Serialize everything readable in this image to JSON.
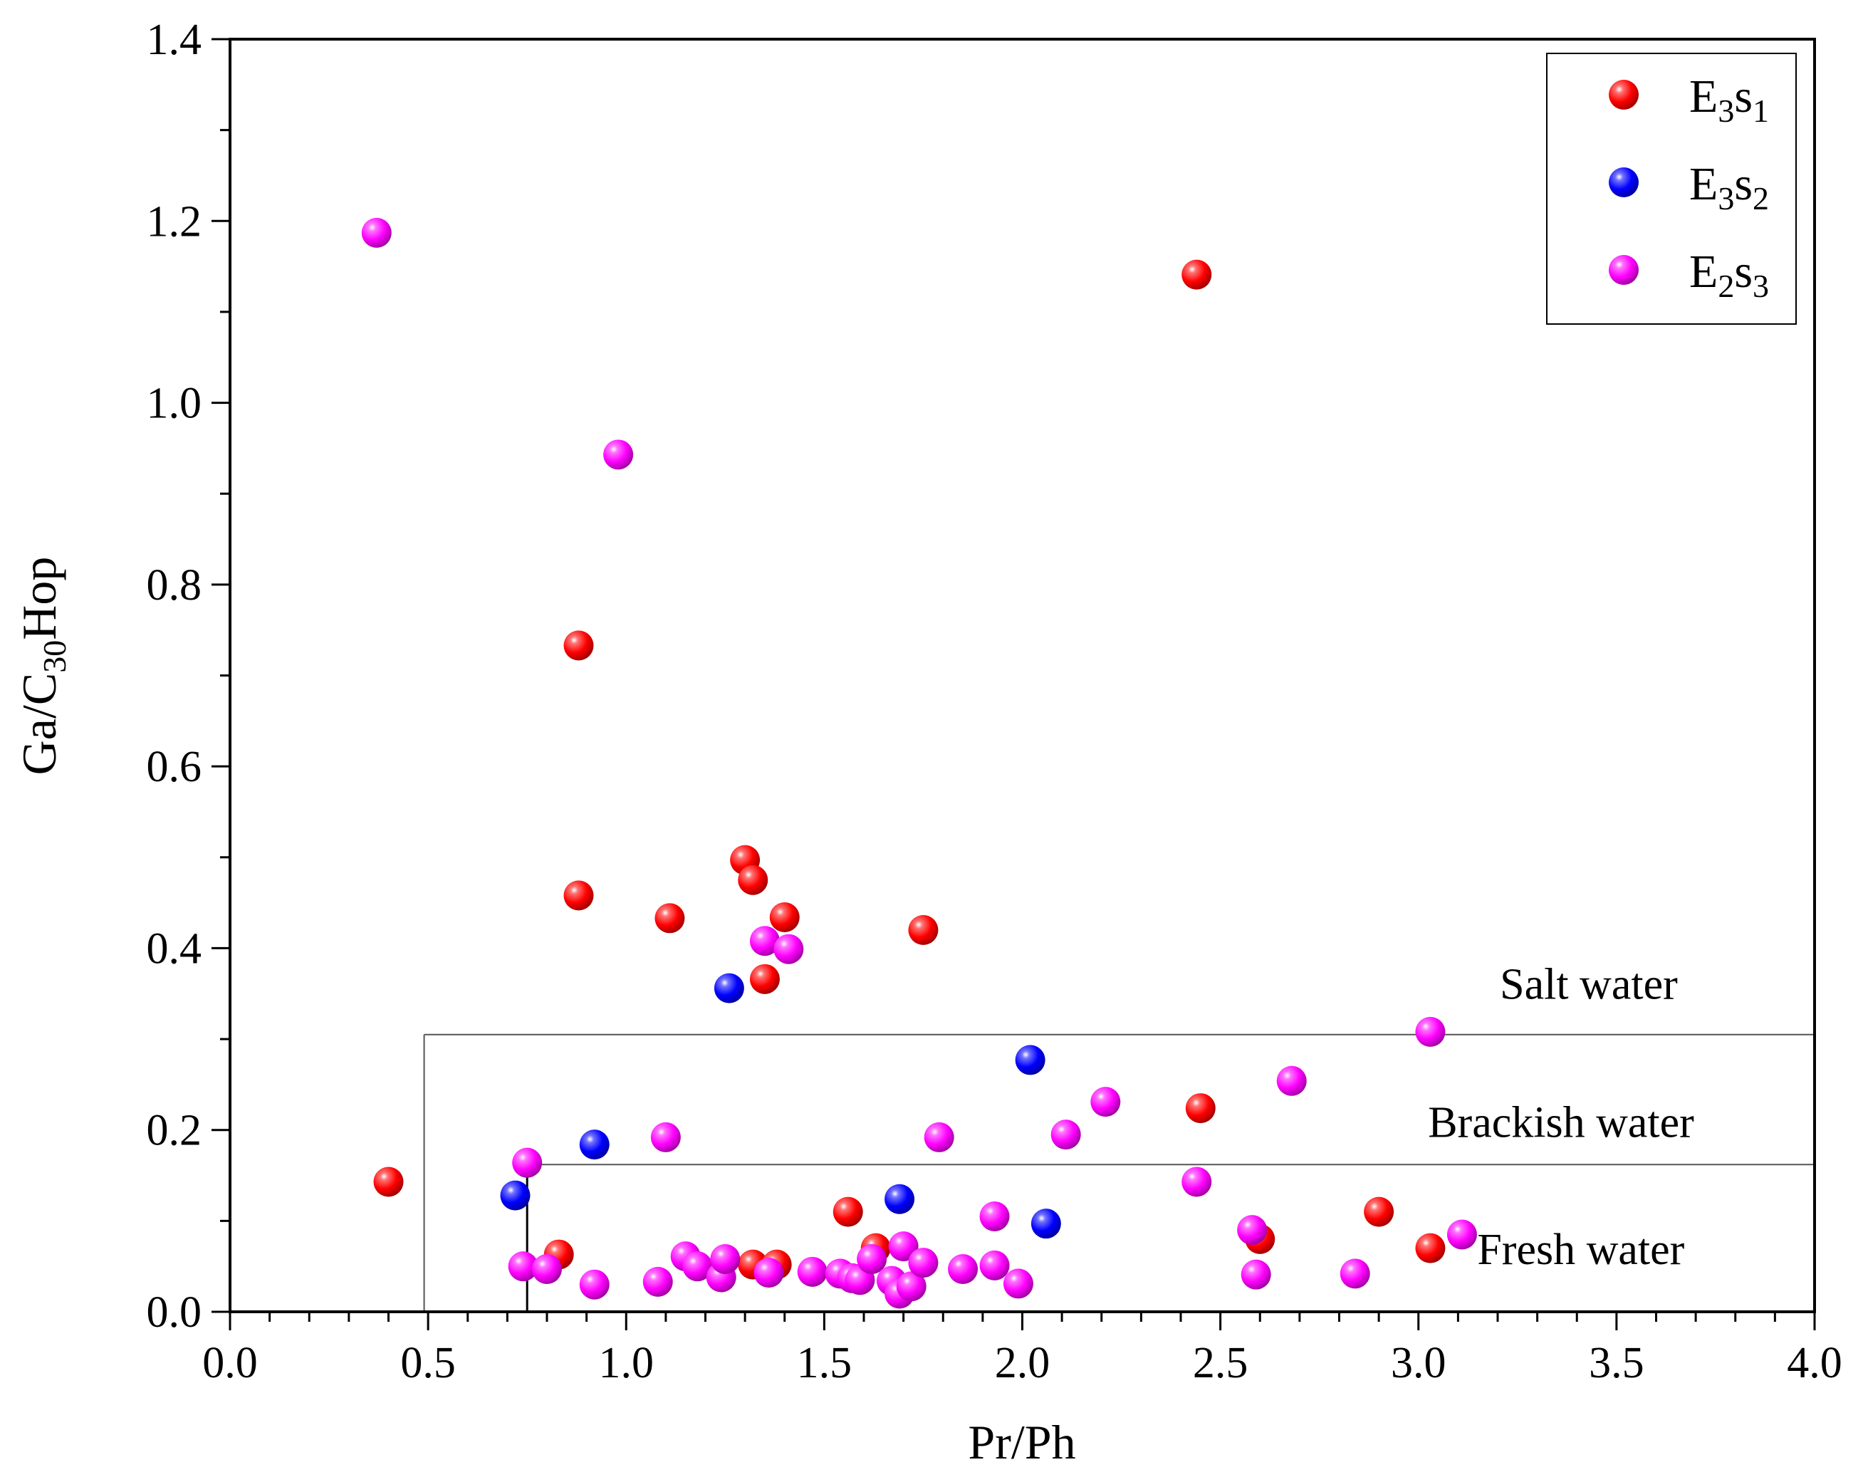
{
  "chart_data": {
    "type": "scatter",
    "xlabel": "Pr/Ph",
    "ylabel": {
      "pre": "Ga/C",
      "sub": "30",
      "post": "Hop"
    },
    "xlim": [
      0.0,
      4.0
    ],
    "ylim": [
      0.0,
      1.4
    ],
    "x_major_ticks": [
      "0.0",
      "0.5",
      "1.0",
      "1.5",
      "2.0",
      "2.5",
      "3.0",
      "3.5",
      "4.0"
    ],
    "y_major_ticks": [
      "0.0",
      "0.2",
      "0.4",
      "0.6",
      "0.8",
      "1.0",
      "1.2",
      "1.4"
    ],
    "x_minor_step": 0.1,
    "y_minor_step": 0.1,
    "grid": false,
    "legend_position": "top-right",
    "series": [
      {
        "name": "E3s1",
        "label": {
          "b1": "E",
          "s1": "3",
          "b2": "s",
          "s2": "1"
        },
        "color": "#ff0000",
        "points": [
          [
            0.4,
            0.143
          ],
          [
            0.83,
            0.063
          ],
          [
            0.88,
            0.733
          ],
          [
            0.88,
            0.458
          ],
          [
            1.11,
            0.433
          ],
          [
            1.3,
            0.497
          ],
          [
            1.32,
            0.475
          ],
          [
            1.32,
            0.052
          ],
          [
            1.35,
            0.366
          ],
          [
            1.38,
            0.052
          ],
          [
            1.4,
            0.434
          ],
          [
            1.56,
            0.11
          ],
          [
            1.63,
            0.07
          ],
          [
            1.75,
            0.42
          ],
          [
            2.44,
            1.141
          ],
          [
            2.45,
            0.224
          ],
          [
            2.6,
            0.08
          ],
          [
            2.9,
            0.11
          ],
          [
            3.03,
            0.07
          ]
        ]
      },
      {
        "name": "E3s2",
        "label": {
          "b1": "E",
          "s1": "3",
          "b2": "s",
          "s2": "2"
        },
        "color": "#0000ff",
        "points": [
          [
            0.72,
            0.128
          ],
          [
            0.92,
            0.184
          ],
          [
            1.26,
            0.356
          ],
          [
            1.69,
            0.124
          ],
          [
            2.02,
            0.277
          ],
          [
            2.06,
            0.097
          ]
        ]
      },
      {
        "name": "E2s3",
        "label": {
          "b1": "E",
          "s1": "2",
          "b2": "s",
          "s2": "3"
        },
        "color": "#ff00ff",
        "points": [
          [
            0.37,
            1.187
          ],
          [
            0.74,
            0.05
          ],
          [
            0.75,
            0.164
          ],
          [
            0.8,
            0.047
          ],
          [
            0.92,
            0.03
          ],
          [
            0.98,
            0.943
          ],
          [
            1.08,
            0.033
          ],
          [
            1.1,
            0.192
          ],
          [
            1.15,
            0.061
          ],
          [
            1.18,
            0.05
          ],
          [
            1.24,
            0.038
          ],
          [
            1.25,
            0.058
          ],
          [
            1.35,
            0.408
          ],
          [
            1.36,
            0.043
          ],
          [
            1.41,
            0.399
          ],
          [
            1.47,
            0.044
          ],
          [
            1.54,
            0.042
          ],
          [
            1.57,
            0.037
          ],
          [
            1.59,
            0.035
          ],
          [
            1.62,
            0.058
          ],
          [
            1.67,
            0.034
          ],
          [
            1.69,
            0.02
          ],
          [
            1.7,
            0.072
          ],
          [
            1.72,
            0.028
          ],
          [
            1.75,
            0.054
          ],
          [
            1.79,
            0.192
          ],
          [
            1.85,
            0.047
          ],
          [
            1.93,
            0.105
          ],
          [
            1.93,
            0.051
          ],
          [
            1.99,
            0.031
          ],
          [
            2.11,
            0.195
          ],
          [
            2.21,
            0.231
          ],
          [
            2.44,
            0.143
          ],
          [
            2.58,
            0.09
          ],
          [
            2.59,
            0.041
          ],
          [
            2.68,
            0.254
          ],
          [
            2.84,
            0.042
          ],
          [
            3.03,
            0.308
          ],
          [
            3.11,
            0.085
          ]
        ]
      }
    ],
    "regions": [
      {
        "name": "Salt water",
        "label_x": 3.43,
        "label_y": 0.36
      },
      {
        "name": "Brackish water",
        "label_x": 3.36,
        "label_y": 0.208
      },
      {
        "name": "Fresh water",
        "label_x": 3.41,
        "label_y": 0.068
      }
    ],
    "boundaries": {
      "brackish_upper_y": 0.305,
      "fresh_upper_y": 0.162,
      "outer_left_x": 0.49,
      "inner_left_x": 0.75
    }
  }
}
